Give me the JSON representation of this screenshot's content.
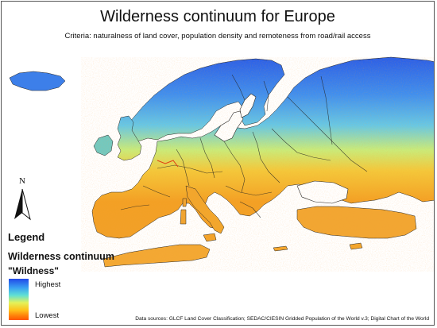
{
  "map": {
    "title": "Wilderness continuum for Europe",
    "subtitle": "Criteria: naturalness of land cover, population density and remoteness from road/rail access",
    "north_arrow_label": "N",
    "legend": {
      "heading": "Legend",
      "layer_name": "Wilderness continuum",
      "field_name": "\"Wildness\"",
      "high_label": "Highest",
      "low_label": "Lowest",
      "ramp_colors": [
        "#2148e8",
        "#3aa2f2",
        "#5fe0d4",
        "#e4f25a",
        "#ffc21a",
        "#ff7e0a",
        "#ff5500"
      ]
    },
    "data_sources": "Data sources: GLCF Land Cover Classification; SEDAC/CIESIN Gridded Population of the World v.3; Digital Chart of the World"
  }
}
